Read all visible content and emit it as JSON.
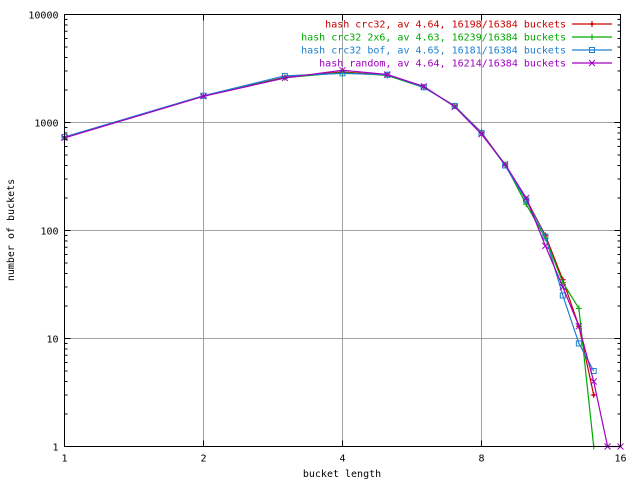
{
  "chart_data": {
    "type": "line",
    "xlabel": "bucket length",
    "ylabel": "number of buckets",
    "x_scale": "log2",
    "y_scale": "log10",
    "xlim": [
      1,
      16
    ],
    "ylim": [
      1,
      10000
    ],
    "x_ticks": [
      1,
      2,
      4,
      8,
      16
    ],
    "x_tick_labels": [
      "1",
      "2",
      "4",
      "8",
      "16"
    ],
    "y_ticks": [
      1,
      10,
      100,
      1000,
      10000
    ],
    "y_tick_labels": [
      "1",
      "10",
      "100",
      "1000",
      "10000"
    ],
    "grid": true,
    "legend_position": "top-right",
    "series": [
      {
        "name": "hash crc32, av 4.64, 16198/16384 buckets",
        "color": "#cc0000",
        "marker": "plus-diamond",
        "x": [
          1,
          2,
          3,
          4,
          5,
          6,
          7,
          8,
          9,
          10,
          11,
          12,
          13,
          14
        ],
        "y": [
          730,
          1760,
          2620,
          2950,
          2740,
          2130,
          1420,
          810,
          405,
          195,
          90,
          35,
          13,
          3
        ]
      },
      {
        "name": "hash crc32 2x6, av 4.63, 16239/16384 buckets",
        "color": "#00aa00",
        "marker": "plus",
        "x": [
          1,
          2,
          3,
          4,
          5,
          6,
          7,
          8,
          9,
          10,
          11,
          12,
          13,
          14
        ],
        "y": [
          725,
          1765,
          2600,
          2900,
          2730,
          2110,
          1430,
          790,
          410,
          175,
          85,
          33,
          19,
          1
        ]
      },
      {
        "name": "hash crc32 bof, av 4.65, 16181/16384 buckets",
        "color": "#2080d0",
        "marker": "square",
        "x": [
          1,
          2,
          3,
          4,
          5,
          6,
          7,
          8,
          9,
          10,
          11,
          12,
          13,
          14
        ],
        "y": [
          735,
          1770,
          2700,
          2850,
          2770,
          2120,
          1420,
          800,
          400,
          190,
          88,
          25,
          9,
          5
        ]
      },
      {
        "name": "hash random, av 4.64, 16214/16384 buckets",
        "color": "#a000c0",
        "marker": "cross",
        "x": [
          1,
          2,
          3,
          4,
          5,
          6,
          7,
          8,
          9,
          10,
          11,
          12,
          13,
          14,
          15,
          16
        ],
        "y": [
          720,
          1750,
          2580,
          3050,
          2780,
          2160,
          1400,
          780,
          410,
          200,
          72,
          30,
          13,
          4,
          1,
          1
        ]
      }
    ]
  }
}
